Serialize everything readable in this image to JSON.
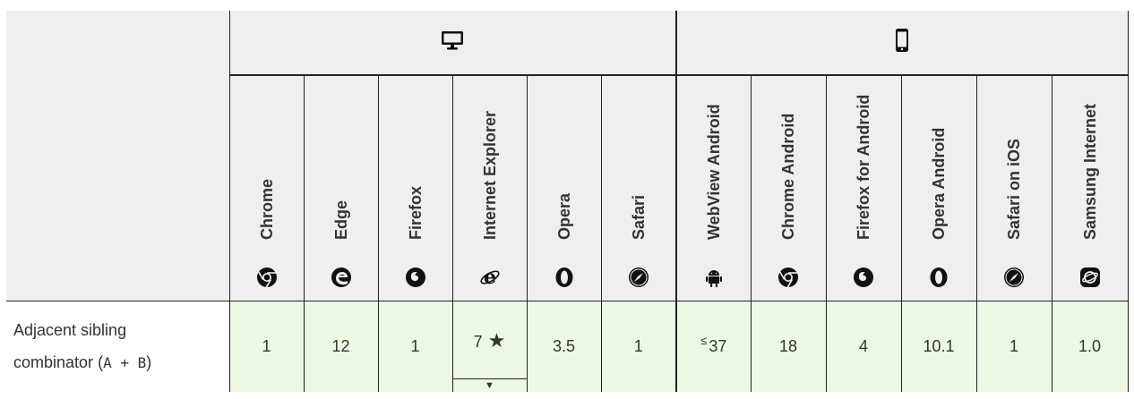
{
  "platforms": [
    {
      "name": "desktop-icon"
    },
    {
      "name": "mobile-icon"
    }
  ],
  "browsers": {
    "desktop": [
      "Chrome",
      "Edge",
      "Firefox",
      "Internet Explorer",
      "Opera",
      "Safari"
    ],
    "mobile": [
      "WebView Android",
      "Chrome Android",
      "Firefox for Android",
      "Opera Android",
      "Safari on iOS",
      "Samsung Internet"
    ]
  },
  "feature": {
    "label": "Adjacent sibling",
    "label2": "combinator",
    "code": "A + B",
    "open_paren": "(",
    "close_paren": ")"
  },
  "support": {
    "desktop": [
      "1",
      "12",
      "1",
      "7",
      "3.5",
      "1"
    ],
    "mobile": [
      "37",
      "18",
      "4",
      "10.1",
      "1",
      "1.0"
    ],
    "webview_prefix": "≤",
    "ie_note": "★",
    "ie_toggle": "▼"
  },
  "colors": {
    "header_bg": "#efefef",
    "support_bg": "#ecf8e1",
    "border": "#222222"
  }
}
